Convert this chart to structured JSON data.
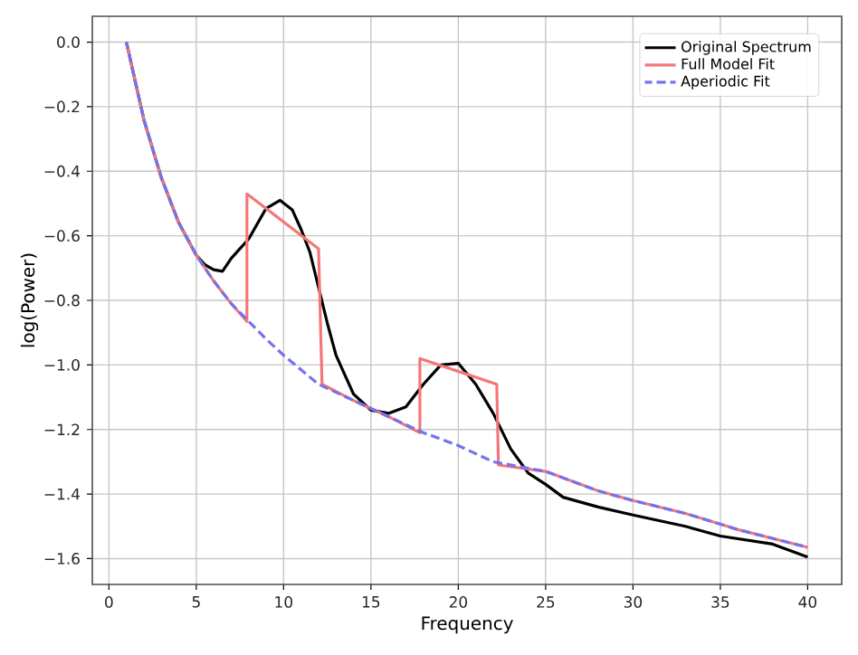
{
  "chart_data": {
    "type": "line",
    "xlabel": "Frequency",
    "ylabel": "log(Power)",
    "xlim": [
      -0.95,
      41.95
    ],
    "ylim": [
      -1.68,
      0.08
    ],
    "xticks": [
      0,
      5,
      10,
      15,
      20,
      25,
      30,
      35,
      40
    ],
    "yticks": [
      {
        "value": 0,
        "label": "0.0"
      },
      {
        "value": -0.2,
        "label": "−0.2"
      },
      {
        "value": -0.4,
        "label": "−0.4"
      },
      {
        "value": -0.6,
        "label": "−0.6"
      },
      {
        "value": -0.8,
        "label": "−0.8"
      },
      {
        "value": -1.0,
        "label": "−1.0"
      },
      {
        "value": -1.2,
        "label": "−1.2"
      },
      {
        "value": -1.4,
        "label": "−1.4"
      },
      {
        "value": -1.6,
        "label": "−1.6"
      }
    ],
    "grid": true,
    "legend": "top right",
    "marker": "none",
    "series": [
      {
        "name": "Original Spectrum",
        "color": "#000000",
        "line_style": "solid",
        "x": [
          1,
          2,
          3,
          4,
          5,
          5.5,
          6,
          6.5,
          7,
          7.5,
          8,
          9,
          9.8,
          10.5,
          11,
          11.5,
          12,
          12.5,
          13,
          13.5,
          14,
          15,
          16,
          17,
          18,
          19,
          20,
          21,
          22,
          23,
          24,
          25,
          26,
          28,
          30,
          33,
          35,
          38,
          40
        ],
        "values": [
          0,
          -0.24,
          -0.42,
          -0.56,
          -0.66,
          -0.69,
          -0.705,
          -0.71,
          -0.67,
          -0.64,
          -0.61,
          -0.515,
          -0.49,
          -0.52,
          -0.58,
          -0.65,
          -0.76,
          -0.87,
          -0.97,
          -1.03,
          -1.09,
          -1.14,
          -1.15,
          -1.13,
          -1.06,
          -1.0,
          -0.995,
          -1.06,
          -1.15,
          -1.26,
          -1.335,
          -1.37,
          -1.41,
          -1.44,
          -1.465,
          -1.5,
          -1.53,
          -1.555,
          -1.595
        ]
      },
      {
        "name": "Full Model Fit",
        "color": "#f47777",
        "line_style": "solid",
        "x": [
          1,
          1.5,
          2,
          3,
          4,
          5,
          6,
          7,
          7.9,
          7.9,
          12,
          12.2,
          14,
          16,
          17.8,
          17.8,
          22.2,
          22.3,
          25,
          28,
          30,
          33,
          36,
          40
        ],
        "values": [
          0,
          -0.12,
          -0.24,
          -0.42,
          -0.56,
          -0.66,
          -0.74,
          -0.81,
          -0.865,
          -0.47,
          -0.64,
          -1.06,
          -1.11,
          -1.16,
          -1.21,
          -0.98,
          -1.06,
          -1.31,
          -1.33,
          -1.39,
          -1.42,
          -1.46,
          -1.51,
          -1.565
        ]
      },
      {
        "name": "Aperiodic Fit",
        "color": "#7373ee",
        "line_style": "dashed",
        "x": [
          1,
          1.5,
          2,
          3,
          4,
          5,
          6,
          7,
          8,
          9,
          10,
          12,
          14,
          16,
          18,
          20,
          22,
          25,
          28,
          30,
          33,
          36,
          40
        ],
        "values": [
          0,
          -0.12,
          -0.24,
          -0.42,
          -0.56,
          -0.66,
          -0.74,
          -0.81,
          -0.865,
          -0.92,
          -0.97,
          -1.06,
          -1.11,
          -1.16,
          -1.21,
          -1.25,
          -1.3,
          -1.33,
          -1.39,
          -1.42,
          -1.46,
          -1.51,
          -1.565
        ]
      }
    ]
  }
}
